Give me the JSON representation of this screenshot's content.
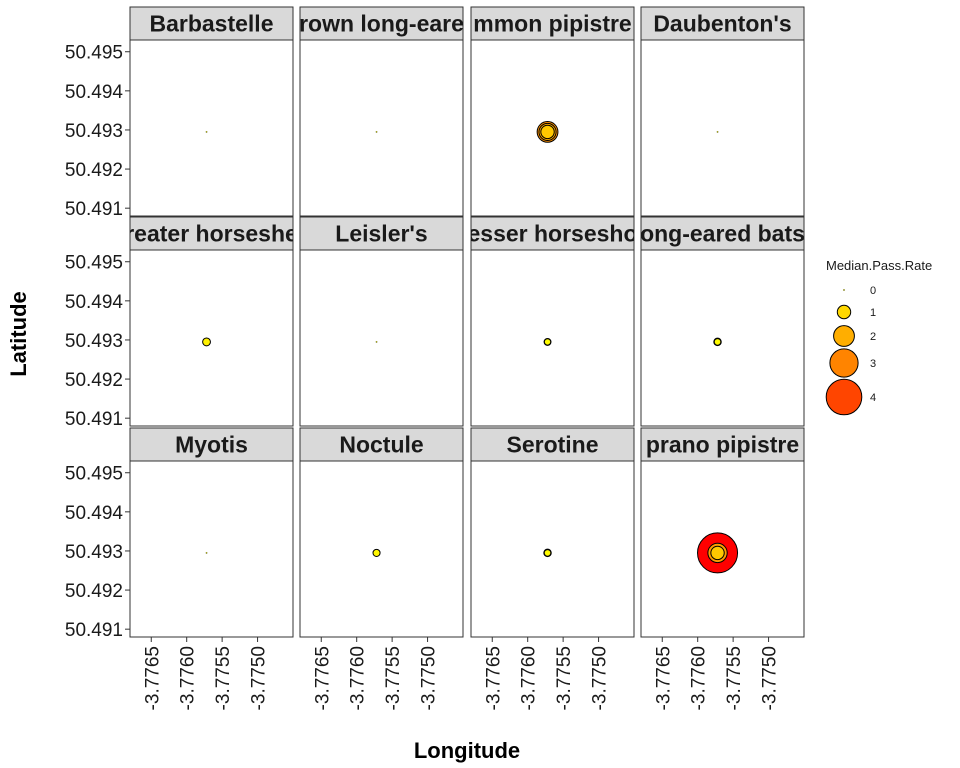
{
  "chart_data": {
    "type": "scatter",
    "facet_layout": "3 rows x 4 columns, shared axes",
    "xlabel": "Longitude",
    "ylabel": "Latitude",
    "xlim": [
      -3.7768,
      -3.7745
    ],
    "ylim": [
      50.4908,
      50.4953
    ],
    "x_ticks": [
      -3.7765,
      -3.776,
      -3.7755,
      -3.775
    ],
    "x_tick_labels": [
      "-3.7765",
      "-3.7760",
      "-3.7755",
      "-3.7750"
    ],
    "y_ticks": [
      50.491,
      50.492,
      50.493,
      50.494,
      50.495
    ],
    "y_tick_labels": [
      "50.491",
      "50.492",
      "50.493",
      "50.494",
      "50.495"
    ],
    "grid": false,
    "size_legend": {
      "title": "Median.Pass.Rate",
      "position": "right",
      "values": [
        0,
        1,
        2,
        3,
        4
      ],
      "labels": [
        "0",
        "1",
        "2",
        "3",
        "4"
      ],
      "colors": [
        "#FFFF00",
        "#FFD800",
        "#FFAE00",
        "#FF8400",
        "#FF4500"
      ]
    },
    "color_scale": {
      "low": "#FFFF00",
      "high": "#FF0000",
      "domain": [
        0,
        4.6
      ]
    },
    "facets": [
      {
        "label": "Barbastelle",
        "points": [
          {
            "x": -3.77572,
            "y": 50.49295,
            "value": 0.0
          }
        ]
      },
      {
        "label": "rown long-eare",
        "points": [
          {
            "x": -3.77572,
            "y": 50.49295,
            "value": 0.0
          }
        ]
      },
      {
        "label": "mmon pipistre",
        "points": [
          {
            "x": -3.77572,
            "y": 50.49295,
            "value": 2.0
          },
          {
            "x": -3.77572,
            "y": 50.49295,
            "value": 1.5
          },
          {
            "x": -3.77572,
            "y": 50.49295,
            "value": 1.0
          }
        ]
      },
      {
        "label": "Daubenton's",
        "points": [
          {
            "x": -3.77572,
            "y": 50.49295,
            "value": 0.0
          }
        ]
      },
      {
        "label": "reater horseshe",
        "points": [
          {
            "x": -3.77572,
            "y": 50.49295,
            "value": 0.25
          }
        ]
      },
      {
        "label": "Leisler's",
        "points": [
          {
            "x": -3.77572,
            "y": 50.49295,
            "value": 0.0
          }
        ]
      },
      {
        "label": "esser horsesho",
        "points": [
          {
            "x": -3.77572,
            "y": 50.49295,
            "value": 0.12
          },
          {
            "x": -3.77572,
            "y": 50.49295,
            "value": 0.05
          }
        ]
      },
      {
        "label": "ong-eared bats",
        "points": [
          {
            "x": -3.77572,
            "y": 50.49295,
            "value": 0.2
          },
          {
            "x": -3.77572,
            "y": 50.49295,
            "value": 0.08
          }
        ]
      },
      {
        "label": "Myotis",
        "points": [
          {
            "x": -3.77572,
            "y": 50.49295,
            "value": 0.0
          }
        ]
      },
      {
        "label": "Noctule",
        "points": [
          {
            "x": -3.77572,
            "y": 50.49295,
            "value": 0.15
          }
        ]
      },
      {
        "label": "Serotine",
        "points": [
          {
            "x": -3.77572,
            "y": 50.49295,
            "value": 0.2
          },
          {
            "x": -3.77572,
            "y": 50.49295,
            "value": 0.08
          }
        ]
      },
      {
        "label": "prano pipistre",
        "points": [
          {
            "x": -3.77572,
            "y": 50.49295,
            "value": 4.6
          },
          {
            "x": -3.77572,
            "y": 50.49295,
            "value": 1.8
          },
          {
            "x": -3.77572,
            "y": 50.49295,
            "value": 1.0
          }
        ]
      }
    ]
  }
}
